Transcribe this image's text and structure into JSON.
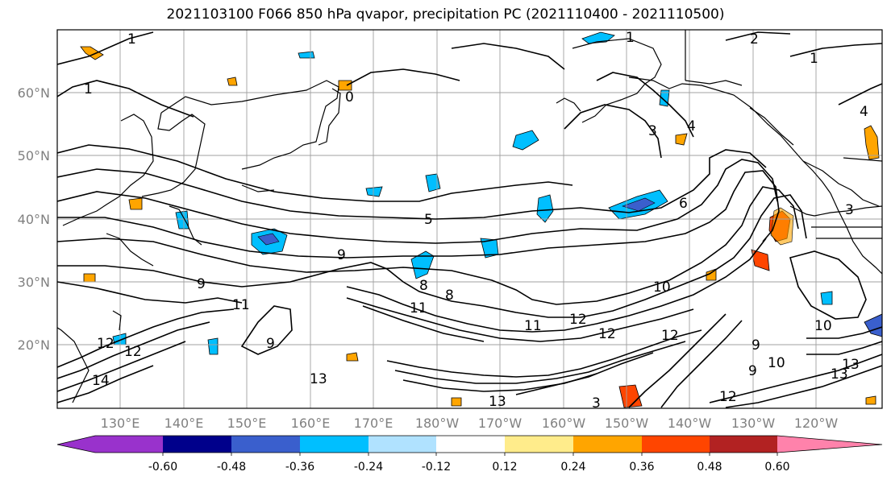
{
  "title": "2021103100 F066 850 hPa qvapor, precipitation PC (2021110400 - 2021110500)",
  "lat_labels": [
    "60°N",
    "50°N",
    "40°N",
    "30°N",
    "20°N"
  ],
  "lon_labels": [
    "130°E",
    "140°E",
    "150°E",
    "160°E",
    "170°E",
    "180°W",
    "170°W",
    "160°W",
    "150°W",
    "140°W",
    "130°W",
    "120°W"
  ],
  "contour_labels": [
    "1",
    "1",
    "2",
    "1",
    "0",
    "1",
    "3",
    "4",
    "6",
    "4",
    "3",
    "5",
    "9",
    "9",
    "10",
    "8",
    "8",
    "11",
    "11",
    "12",
    "13",
    "13",
    "13",
    "12",
    "10",
    "9",
    "12",
    "14",
    "12",
    "12",
    "10",
    "9",
    "13",
    "3",
    "9",
    "11",
    "12"
  ],
  "colorbar": {
    "ticks": [
      "-0.60",
      "-0.48",
      "-0.36",
      "-0.24",
      "-0.12",
      "0.12",
      "0.24",
      "0.36",
      "0.48",
      "0.60"
    ],
    "colors": [
      "#9932cc",
      "#00008b",
      "#3a5fcd",
      "#00bfff",
      "#b0e2ff",
      "#ffffff",
      "#ffec8b",
      "#ffa500",
      "#ff4500",
      "#b22222",
      "#ff82ab"
    ]
  },
  "colors": {
    "grid": "#a0a0a0",
    "axis_labels": "#808080",
    "contour": "#000000"
  }
}
